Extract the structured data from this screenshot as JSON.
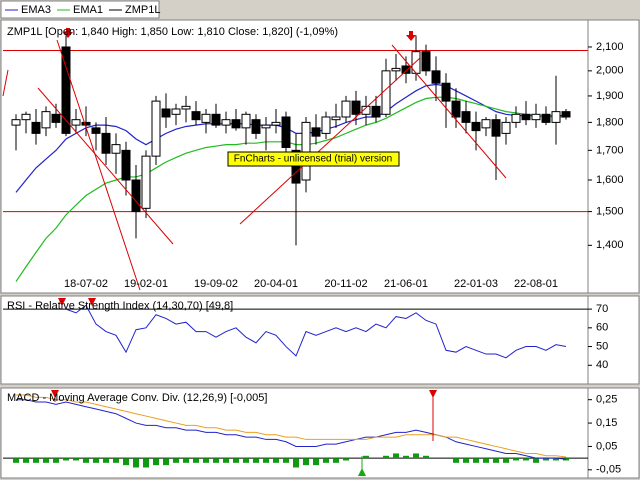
{
  "chart_data": [
    {
      "type": "candlestick",
      "title": "ZMP1L [Open: 1,840  High: 1,850  Low: 1,810  Close: 1,820] (-1,09%)",
      "name": "ZMP1L",
      "categories": [
        null,
        null,
        null,
        null,
        null,
        null,
        null,
        "18-07-02",
        null,
        null,
        null,
        null,
        null,
        "19-02-01",
        null,
        null,
        null,
        null,
        null,
        null,
        "19-09-02",
        null,
        null,
        null,
        null,
        null,
        "20-04-01",
        null,
        null,
        null,
        null,
        null,
        null,
        "20-11-02",
        null,
        null,
        null,
        null,
        null,
        "21-06-01",
        null,
        null,
        null,
        null,
        null,
        null,
        "22-01-03",
        null,
        null,
        null,
        null,
        null,
        "22-08-01",
        null,
        null,
        null
      ],
      "open": [
        1790,
        1810,
        1800,
        1780,
        1830,
        2100,
        1790,
        1800,
        1780,
        1760,
        1690,
        1700,
        1600,
        1510,
        1680,
        1850,
        1830,
        1850,
        1840,
        1800,
        1830,
        1790,
        1810,
        1780,
        1810,
        1780,
        1790,
        1820,
        1700,
        1600,
        1780,
        1760,
        1810,
        1820,
        1880,
        1830,
        1860,
        1830,
        2000,
        2020,
        1990,
        2080,
        2000,
        1950,
        1880,
        1840,
        1800,
        1780,
        1810,
        1760,
        1800,
        1830,
        1810,
        1830,
        1800,
        1840
      ],
      "high": [
        1830,
        1840,
        1850,
        1860,
        1870,
        2150,
        1850,
        1860,
        1800,
        1820,
        1760,
        1730,
        1650,
        1700,
        1900,
        1910,
        1870,
        1900,
        1880,
        1850,
        1870,
        1840,
        1850,
        1840,
        1830,
        1820,
        1850,
        1840,
        1760,
        1820,
        1830,
        1840,
        1870,
        1900,
        1920,
        1900,
        1900,
        2050,
        2070,
        2060,
        2150,
        2110,
        2060,
        1990,
        1930,
        1880,
        1840,
        1820,
        1830,
        1820,
        1860,
        1880,
        1870,
        1860,
        1980,
        1850
      ],
      "low": [
        1700,
        1760,
        1720,
        1750,
        1780,
        1750,
        1760,
        1750,
        1700,
        1650,
        1620,
        1550,
        1420,
        1480,
        1650,
        1780,
        1790,
        1800,
        1790,
        1760,
        1780,
        1760,
        1770,
        1720,
        1740,
        1700,
        1760,
        1680,
        1400,
        1560,
        1720,
        1740,
        1780,
        1800,
        1790,
        1790,
        1800,
        1820,
        1960,
        1950,
        1960,
        1980,
        1880,
        1780,
        1780,
        1760,
        1700,
        1750,
        1600,
        1720,
        1780,
        1790,
        1780,
        1790,
        1720,
        1810
      ],
      "close": [
        1810,
        1830,
        1760,
        1840,
        1800,
        1760,
        1810,
        1790,
        1760,
        1690,
        1720,
        1600,
        1500,
        1680,
        1880,
        1820,
        1850,
        1860,
        1810,
        1830,
        1790,
        1810,
        1780,
        1830,
        1760,
        1790,
        1800,
        1710,
        1590,
        1800,
        1750,
        1820,
        1820,
        1880,
        1830,
        1860,
        1820,
        2000,
        2010,
        1990,
        2080,
        2000,
        1950,
        1880,
        1820,
        1800,
        1770,
        1810,
        1750,
        1800,
        1830,
        1810,
        1830,
        1800,
        1840,
        1820
      ],
      "series": [
        {
          "name": "EMA3",
          "color": "#2222cc",
          "values": [
            1560,
            1600,
            1640,
            1670,
            1700,
            1740,
            1760,
            1780,
            1790,
            1790,
            1785,
            1770,
            1740,
            1720,
            1740,
            1760,
            1775,
            1785,
            1790,
            1795,
            1795,
            1795,
            1795,
            1795,
            1790,
            1790,
            1790,
            1780,
            1760,
            1760,
            1765,
            1775,
            1785,
            1800,
            1810,
            1820,
            1820,
            1840,
            1870,
            1895,
            1920,
            1940,
            1945,
            1940,
            1920,
            1900,
            1880,
            1860,
            1840,
            1830,
            1825,
            1825,
            1825,
            1822,
            1825,
            1825
          ]
        },
        {
          "name": "EMA1",
          "color": "#22bb22",
          "values": [
            1300,
            1340,
            1380,
            1420,
            1450,
            1490,
            1520,
            1550,
            1570,
            1590,
            1600,
            1610,
            1610,
            1620,
            1640,
            1660,
            1675,
            1690,
            1700,
            1710,
            1715,
            1720,
            1720,
            1725,
            1725,
            1730,
            1730,
            1730,
            1720,
            1720,
            1725,
            1735,
            1745,
            1760,
            1775,
            1790,
            1800,
            1815,
            1835,
            1855,
            1875,
            1890,
            1895,
            1895,
            1890,
            1880,
            1870,
            1860,
            1850,
            1840,
            1835,
            1830,
            1825,
            1822,
            1820,
            1820
          ]
        }
      ],
      "log_scale": true,
      "ylim": [
        1270,
        2210
      ],
      "yticks": [
        {
          "value": 1400,
          "label": "1,400"
        },
        {
          "value": 1500,
          "label": "1,500"
        },
        {
          "value": 1600,
          "label": "1,600"
        },
        {
          "value": 1700,
          "label": "1,700"
        },
        {
          "value": 1800,
          "label": "1,800"
        },
        {
          "value": 1900,
          "label": "1,900"
        },
        {
          "value": 2000,
          "label": "2,000"
        },
        {
          "value": 2100,
          "label": "2,100"
        }
      ],
      "reference_lines": [
        2085,
        1500
      ],
      "reference_color": "#dd0000",
      "watermark": "FnCharts - unlicensed (trial) version"
    },
    {
      "type": "line",
      "title": "RSI - Relative Strength Index (14,30,70) [49,8]",
      "color": "#2222cc",
      "values": [
        null,
        null,
        null,
        null,
        null,
        70,
        68,
        72,
        62,
        58,
        56,
        47,
        59,
        60,
        67,
        65,
        62,
        63,
        58,
        58,
        55,
        58,
        60,
        55,
        52,
        58,
        56,
        50,
        45,
        58,
        56,
        58,
        60,
        58,
        60,
        58,
        62,
        60,
        66,
        65,
        68,
        64,
        62,
        48,
        47,
        50,
        48,
        46,
        46,
        44,
        48,
        50,
        50,
        48,
        51,
        50
      ],
      "ylim": [
        30,
        77
      ],
      "yticks": [
        40,
        50,
        60,
        70
      ],
      "reference_lines": [
        70
      ],
      "reference_color": "#000000"
    },
    {
      "type": "macd",
      "title": "MACD - Moving Average Conv. Div. (12,26,9) [-0,005]",
      "series": [
        {
          "color": "#2222cc",
          "values": [
            0.25,
            0.25,
            0.24,
            0.24,
            0.23,
            0.24,
            0.23,
            0.22,
            0.21,
            0.2,
            0.19,
            0.17,
            0.15,
            0.14,
            0.14,
            0.13,
            0.13,
            0.12,
            0.12,
            0.11,
            0.11,
            0.1,
            0.1,
            0.09,
            0.09,
            0.08,
            0.08,
            0.07,
            0.05,
            0.05,
            0.05,
            0.06,
            0.06,
            0.07,
            0.08,
            0.09,
            0.09,
            0.1,
            0.11,
            0.11,
            0.12,
            0.11,
            0.1,
            0.09,
            0.07,
            0.06,
            0.05,
            0.04,
            0.03,
            0.02,
            0.02,
            0.01,
            0,
            0,
            0,
            -0.005
          ]
        },
        {
          "color": "#e8a020",
          "values": [
            0.27,
            0.27,
            0.26,
            0.26,
            0.25,
            0.25,
            0.24,
            0.24,
            0.23,
            0.22,
            0.21,
            0.2,
            0.19,
            0.18,
            0.17,
            0.16,
            0.15,
            0.14,
            0.14,
            0.13,
            0.13,
            0.12,
            0.12,
            0.11,
            0.11,
            0.1,
            0.1,
            0.09,
            0.09,
            0.08,
            0.08,
            0.08,
            0.08,
            0.08,
            0.08,
            0.08,
            0.09,
            0.09,
            0.09,
            0.1,
            0.1,
            0.1,
            0.1,
            0.09,
            0.09,
            0.08,
            0.07,
            0.06,
            0.05,
            0.04,
            0.03,
            0.02,
            0.02,
            0.01,
            0.01,
            0.005
          ]
        }
      ],
      "histogram": {
        "color": "#119911",
        "values": [
          -0.02,
          -0.02,
          -0.02,
          -0.02,
          -0.02,
          -0.01,
          -0.01,
          -0.02,
          -0.02,
          -0.02,
          -0.02,
          -0.03,
          -0.04,
          -0.04,
          -0.03,
          -0.03,
          -0.02,
          -0.02,
          -0.02,
          -0.02,
          -0.02,
          -0.02,
          -0.02,
          -0.02,
          -0.02,
          -0.02,
          -0.02,
          -0.02,
          -0.04,
          -0.03,
          -0.03,
          -0.02,
          -0.02,
          -0.01,
          0,
          0.01,
          0,
          0.01,
          0.02,
          0.01,
          0.02,
          0.01,
          0,
          0,
          -0.02,
          -0.02,
          -0.02,
          -0.02,
          -0.02,
          -0.02,
          -0.01,
          -0.01,
          -0.02,
          -0.01,
          -0.01,
          -0.01
        ]
      },
      "ylim": [
        -0.085,
        0.3
      ],
      "yticks": [
        {
          "value": -0.05,
          "label": "-0,05"
        },
        {
          "value": 0.05,
          "label": "0,05"
        },
        {
          "value": 0.15,
          "label": "0,15"
        },
        {
          "value": 0.25,
          "label": "0,25"
        }
      ]
    }
  ]
}
